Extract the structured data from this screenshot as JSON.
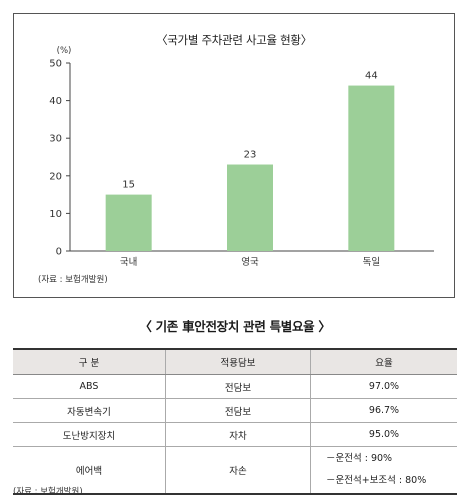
{
  "chart_data": {
    "type": "bar",
    "title": "〈국가별 주차관련 사고율 현황〉",
    "ylabel": "(%)",
    "categories": [
      "국내",
      "영국",
      "독일"
    ],
    "values": [
      15,
      23,
      44
    ],
    "ylim": [
      0,
      50
    ],
    "yticks": [
      0,
      10,
      20,
      30,
      40,
      50
    ],
    "grid": false,
    "bar_color": "#9ccf98",
    "source": "(자료 : 보험개발원)"
  },
  "table": {
    "title": "〈 기존 車안전장치 관련 특별요율 〉",
    "headers": [
      "구 분",
      "적용담보",
      "요율"
    ],
    "rows": [
      {
        "item": "ABS",
        "coverage": "전담보",
        "rate": "97.0%"
      },
      {
        "item": "자동변속기",
        "coverage": "전담보",
        "rate": "96.7%"
      },
      {
        "item": "도난방지장치",
        "coverage": "자차",
        "rate": "95.0%"
      },
      {
        "item": "에어백",
        "coverage": "자손",
        "rate_lines": [
          "－운전석 : 90%",
          "－운전석+보조석 : 80%"
        ]
      }
    ],
    "source": "(자료 : 보험개발원)"
  }
}
